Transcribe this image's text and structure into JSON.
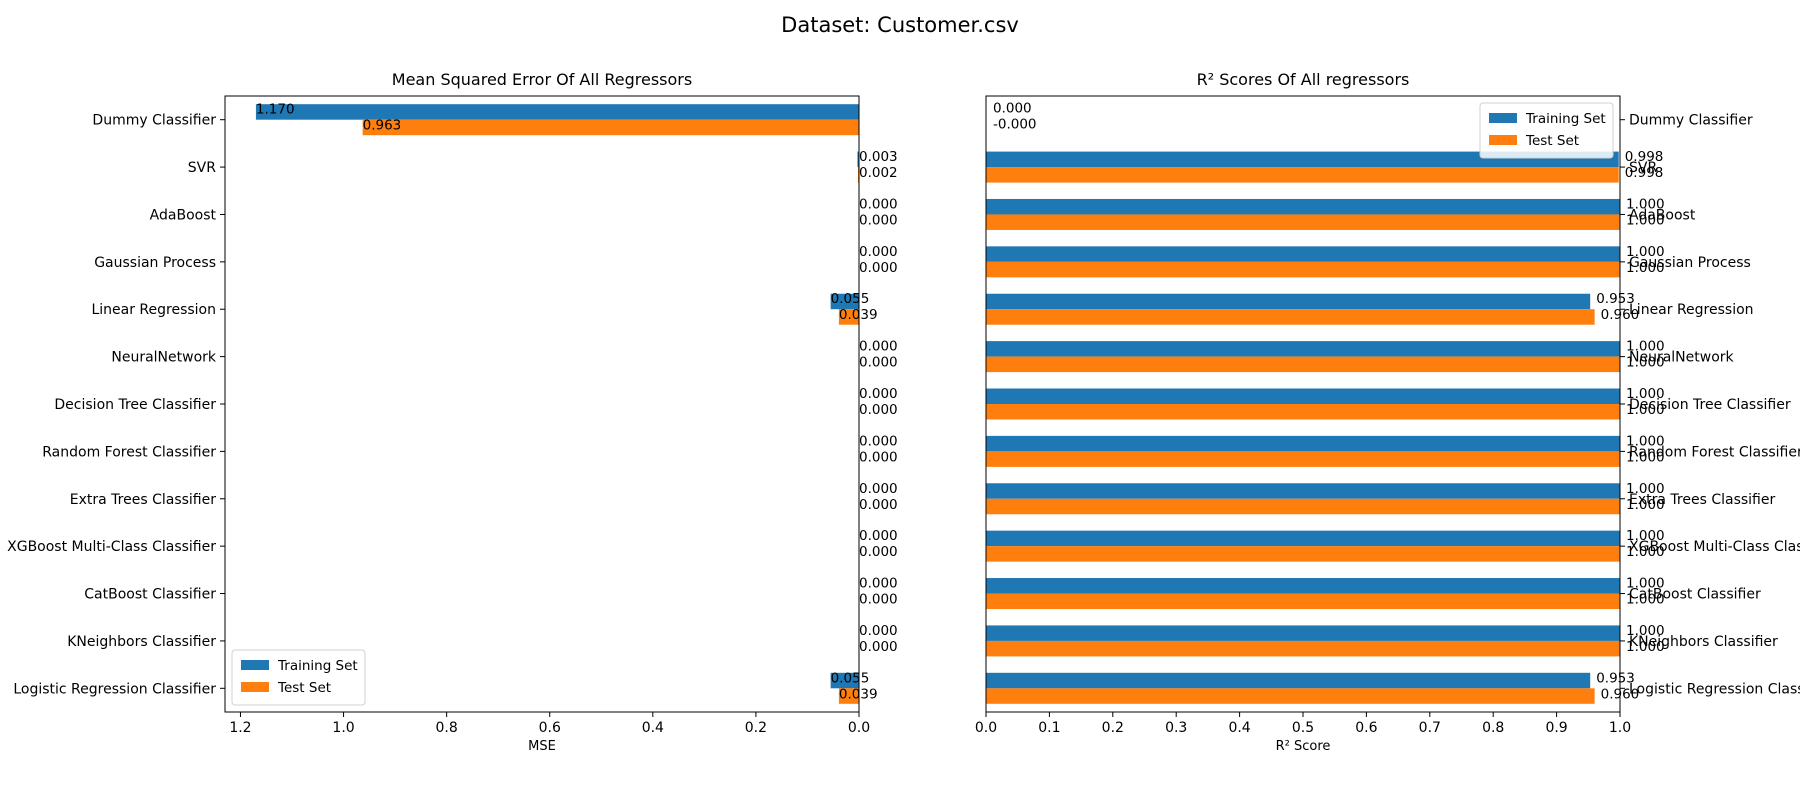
{
  "figure": {
    "suptitle": "Dataset: Customer.csv"
  },
  "colors": {
    "training": "#1f77b4",
    "test": "#ff7f0e"
  },
  "legend": {
    "training": "Training Set",
    "test": "Test Set"
  },
  "chart_data": [
    {
      "type": "bar",
      "orientation": "horizontal",
      "title": "Mean Squared Error Of All Regressors",
      "xlabel": "MSE",
      "ylabel": "",
      "xlim": [
        1.23,
        0
      ],
      "x_inverted": true,
      "xticks": [
        "1.2",
        "1.0",
        "0.8",
        "0.6",
        "0.4",
        "0.2",
        "0.0"
      ],
      "tick_side": "left",
      "legend_position": "lower left",
      "categories": [
        "Dummy Classifier",
        "SVR",
        "AdaBoost",
        "Gaussian Process",
        "Linear Regression",
        "NeuralNetwork",
        "Decision Tree Classifier",
        "Random Forest Classifier",
        "Extra Trees Classifier",
        "XGBoost Multi-Class Classifier",
        "CatBoost Classifier",
        "KNeighbors Classifier",
        "Logistic Regression Classifier"
      ],
      "series": [
        {
          "name": "Training Set",
          "values": [
            1.17,
            0.003,
            0.0,
            0.0,
            0.055,
            0.0,
            0.0,
            0.0,
            0.0,
            0.0,
            0.0,
            0.0,
            0.055
          ],
          "labels": [
            "1.170",
            "0.003",
            "0.000",
            "0.000",
            "0.055",
            "0.000",
            "0.000",
            "0.000",
            "0.000",
            "0.000",
            "0.000",
            "0.000",
            "0.055"
          ]
        },
        {
          "name": "Test Set",
          "values": [
            0.963,
            0.002,
            0.0,
            0.0,
            0.039,
            0.0,
            0.0,
            0.0,
            0.0,
            0.0,
            0.0,
            0.0,
            0.039
          ],
          "labels": [
            "0.963",
            "0.002",
            "0.000",
            "0.000",
            "0.039",
            "0.000",
            "0.000",
            "0.000",
            "0.000",
            "0.000",
            "0.000",
            "0.000",
            "0.039"
          ]
        }
      ]
    },
    {
      "type": "bar",
      "orientation": "horizontal",
      "title": "R² Scores Of All regressors",
      "xlabel": "R² Score",
      "ylabel": "",
      "xlim": [
        0,
        1.0
      ],
      "x_inverted": false,
      "xticks": [
        "0.0",
        "0.1",
        "0.2",
        "0.3",
        "0.4",
        "0.5",
        "0.6",
        "0.7",
        "0.8",
        "0.9",
        "1.0"
      ],
      "tick_side": "right",
      "legend_position": "upper right",
      "categories": [
        "Dummy Classifier",
        "SVR",
        "AdaBoost",
        "Gaussian Process",
        "Linear Regression",
        "NeuralNetwork",
        "Decision Tree Classifier",
        "Random Forest Classifier",
        "Extra Trees Classifier",
        "XGBoost Multi-Class Classifier",
        "CatBoost Classifier",
        "KNeighbors Classifier",
        "Logistic Regression Classifier"
      ],
      "series": [
        {
          "name": "Training Set",
          "values": [
            0.0,
            0.998,
            1.0,
            1.0,
            0.953,
            1.0,
            1.0,
            1.0,
            1.0,
            1.0,
            1.0,
            1.0,
            0.953
          ],
          "labels": [
            "0.000",
            "0.998",
            "1.000",
            "1.000",
            "0.953",
            "1.000",
            "1.000",
            "1.000",
            "1.000",
            "1.000",
            "1.000",
            "1.000",
            "0.953"
          ]
        },
        {
          "name": "Test Set",
          "values": [
            0.0,
            0.998,
            1.0,
            1.0,
            0.96,
            1.0,
            1.0,
            1.0,
            1.0,
            1.0,
            1.0,
            1.0,
            0.96
          ],
          "labels": [
            "-0.000",
            "0.998",
            "1.000",
            "1.000",
            "0.960",
            "1.000",
            "1.000",
            "1.000",
            "1.000",
            "1.000",
            "1.000",
            "1.000",
            "0.960"
          ]
        }
      ]
    }
  ]
}
